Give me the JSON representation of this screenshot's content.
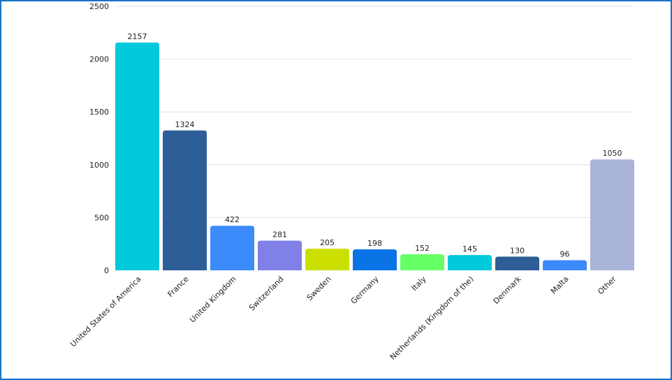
{
  "chart_data": {
    "type": "bar",
    "title": "",
    "xlabel": "",
    "ylabel": "",
    "ylim": [
      0,
      2500
    ],
    "yticks": [
      0,
      500,
      1000,
      1500,
      2000,
      2500
    ],
    "grid": true,
    "categories": [
      "United States of America",
      "France",
      "United Kingdom",
      "Switzerland",
      "Sweden",
      "Germany",
      "Italy",
      "Netherlands (Kingdom of the)",
      "Denmark",
      "Malta",
      "Other"
    ],
    "values": [
      2157,
      1324,
      422,
      281,
      205,
      198,
      152,
      145,
      130,
      96,
      1050
    ],
    "colors": [
      "#00c9dc",
      "#2e5e97",
      "#3b8bfb",
      "#8080e6",
      "#cce000",
      "#0a74e6",
      "#66ff66",
      "#00c9dc",
      "#2e5e97",
      "#3b8bfb",
      "#aab3d9"
    ]
  }
}
